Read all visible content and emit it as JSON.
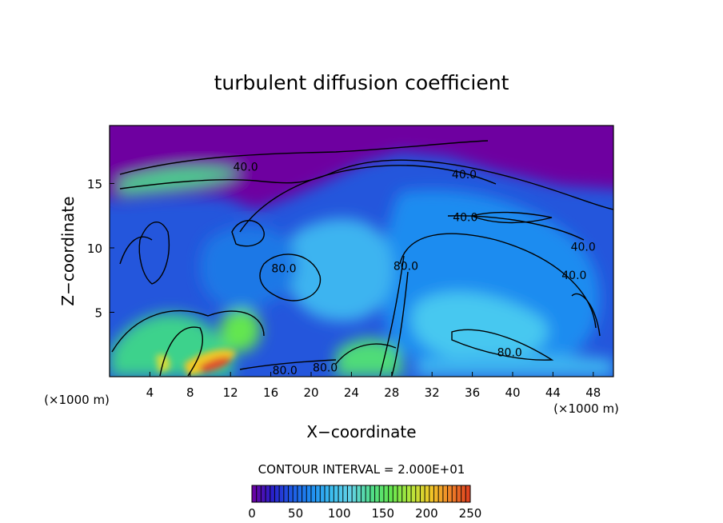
{
  "chart_data": {
    "type": "heatmap",
    "title": "turbulent diffusion coefficient",
    "xlabel": "X−coordinate",
    "ylabel": "Z−coordinate",
    "x_unit_left": "(×1000 m)",
    "x_unit_right": "(×1000 m)",
    "xlim": [
      0,
      50
    ],
    "ylim": [
      0,
      19.5
    ],
    "x_ticks": [
      4,
      8,
      12,
      16,
      20,
      24,
      28,
      32,
      36,
      40,
      44,
      48
    ],
    "y_ticks": [
      5,
      10,
      15
    ],
    "contour_interval_text": "CONTOUR INTERVAL = 2.000E+01",
    "colorbar": {
      "min": 0,
      "max": 250,
      "ticks": [
        0,
        50,
        100,
        150,
        200,
        250
      ],
      "colors": [
        "#6e00a0",
        "#2a1ec8",
        "#1e5ae6",
        "#1e8cf0",
        "#3cbef0",
        "#64d2e6",
        "#50dc8c",
        "#64e650",
        "#b4e63c",
        "#f0c828",
        "#f08228",
        "#dc3c1e"
      ]
    },
    "contour_labels": [
      {
        "text": "40.0",
        "x": 13.5,
        "z": 16.3
      },
      {
        "text": "40.0",
        "x": 35.2,
        "z": 15.7
      },
      {
        "text": "40.0",
        "x": 35.3,
        "z": 12.4
      },
      {
        "text": "40.0",
        "x": 47.0,
        "z": 10.1
      },
      {
        "text": "40.0",
        "x": 46.1,
        "z": 7.9
      },
      {
        "text": "80.0",
        "x": 17.3,
        "z": 8.4
      },
      {
        "text": "80.0",
        "x": 29.4,
        "z": 8.6
      },
      {
        "text": "80.0",
        "x": 39.7,
        "z": 1.9
      },
      {
        "text": "80.0",
        "x": 17.4,
        "z": 0.5
      },
      {
        "text": "80.0",
        "x": 21.4,
        "z": 0.7
      }
    ]
  }
}
